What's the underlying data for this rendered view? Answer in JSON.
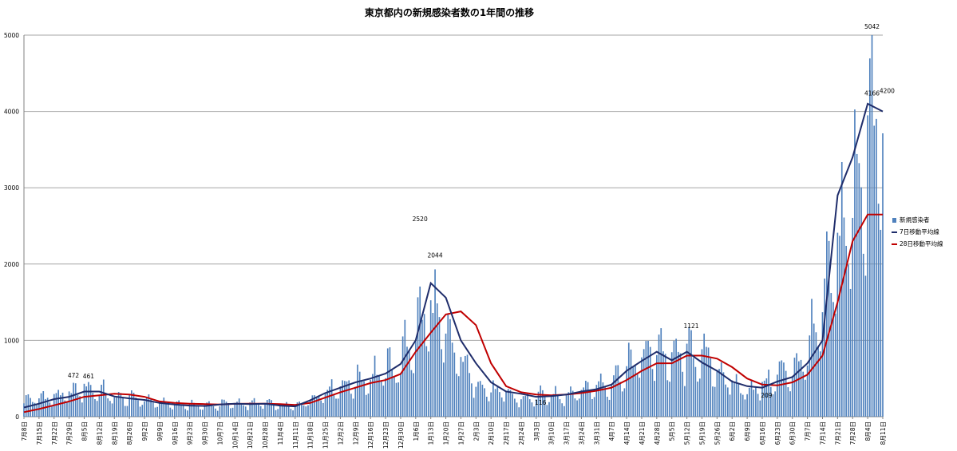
{
  "chart_data": {
    "type": "bar",
    "title": "東京都内の新規感染者数の1年間の推移",
    "xlabel": "",
    "ylabel": "",
    "ylim": [
      0,
      5000
    ],
    "yticks": [
      "0",
      "1000",
      "2000",
      "3000",
      "4000",
      "5000"
    ],
    "grid": true,
    "legend_position": "right",
    "colors": {
      "bars": "#4f81bd",
      "ma7": "#1f2d6b",
      "ma28": "#c00000",
      "grid": "#a6a6a6"
    },
    "xtick_labels": [
      "7月8日",
      "7月15日",
      "7月22日",
      "7月29日",
      "8月5日",
      "8月12日",
      "8月19日",
      "8月26日",
      "9月2日",
      "9月9日",
      "9月16日",
      "9月23日",
      "9月30日",
      "10月7日",
      "10月14日",
      "10月21日",
      "10月28日",
      "11月4日",
      "11月11日",
      "11月18日",
      "11月25日",
      "12月2日",
      "12月9日",
      "12月16日",
      "12月23日",
      "12月30日",
      "1月6日",
      "1月13日",
      "1月20日",
      "1月27日",
      "2月3日",
      "2月10日",
      "2月17日",
      "2月24日",
      "3月3日",
      "3月10日",
      "3月17日",
      "3月24日",
      "3月31日",
      "4月7日",
      "4月14日",
      "4月21日",
      "4月28日",
      "5月5日",
      "5月12日",
      "5月19日",
      "5月26日",
      "6月2日",
      "6月9日",
      "6月16日",
      "6月23日",
      "6月30日",
      "7月7日",
      "7月14日",
      "7月21日",
      "7月28日",
      "8月4日",
      "8月11日"
    ],
    "series": [
      {
        "name": "新規感染者",
        "kind": "bar",
        "weekly_base": [
          200,
          240,
          260,
          290,
          370,
          330,
          240,
          240,
          220,
          175,
          165,
          150,
          140,
          150,
          175,
          160,
          170,
          145,
          130,
          230,
          330,
          400,
          450,
          510,
          590,
          680,
          1100,
          1400,
          1000,
          720,
          460,
          330,
          290,
          220,
          250,
          270,
          280,
          340,
          400,
          450,
          630,
          750,
          900,
          720,
          810,
          760,
          630,
          400,
          350,
          390,
          530,
          600,
          820,
          1300,
          2200,
          2700,
          3700,
          3800
        ]
      },
      {
        "name": "7日移動平均線",
        "kind": "line",
        "values": [
          120,
          170,
          230,
          260,
          330,
          330,
          265,
          240,
          220,
          180,
          160,
          145,
          140,
          160,
          170,
          165,
          170,
          145,
          135,
          215,
          310,
          380,
          450,
          500,
          565,
          690,
          1000,
          1750,
          1560,
          1000,
          700,
          450,
          330,
          300,
          260,
          270,
          290,
          330,
          360,
          420,
          600,
          730,
          850,
          740,
          850,
          710,
          600,
          460,
          400,
          380,
          460,
          520,
          700,
          1000,
          2900,
          3400,
          4100,
          4000
        ]
      },
      {
        "name": "28日移動平均線",
        "kind": "line",
        "values": [
          60,
          100,
          150,
          200,
          260,
          280,
          300,
          290,
          260,
          200,
          180,
          170,
          165,
          160,
          168,
          170,
          170,
          165,
          155,
          180,
          250,
          320,
          380,
          440,
          480,
          560,
          850,
          1100,
          1340,
          1380,
          1200,
          700,
          400,
          320,
          290,
          280,
          290,
          310,
          340,
          380,
          480,
          600,
          700,
          700,
          800,
          800,
          760,
          650,
          500,
          420,
          410,
          450,
          550,
          800,
          1500,
          2300,
          2650,
          2650
        ]
      }
    ],
    "annotations": [
      {
        "week": 3,
        "value": 472,
        "text": "472"
      },
      {
        "week": 4,
        "value": 461,
        "text": "461"
      },
      {
        "week": 26,
        "value": 2520,
        "text": "2520"
      },
      {
        "week": 27,
        "value": 2044,
        "text": "2044"
      },
      {
        "week": 34,
        "value": 116,
        "text": "116"
      },
      {
        "week": 44,
        "value": 1121,
        "text": "1121"
      },
      {
        "week": 49,
        "value": 209,
        "text": "209"
      },
      {
        "week": 56,
        "value": 4166,
        "text": "4166"
      },
      {
        "week": 56,
        "value": 5042,
        "text": "5042"
      },
      {
        "week": 57,
        "value": 4200,
        "text": "4200"
      }
    ]
  }
}
